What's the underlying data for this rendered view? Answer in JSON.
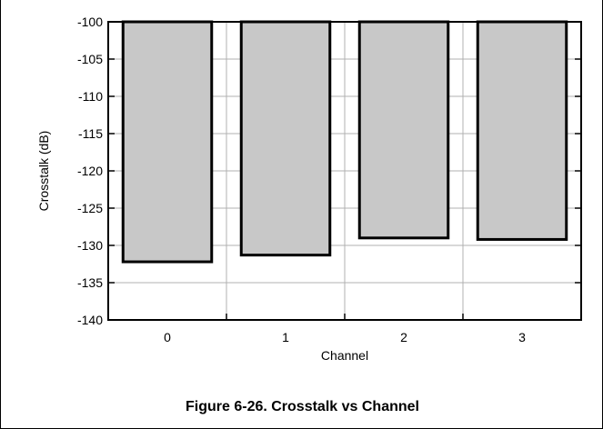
{
  "figure": {
    "caption": "Figure 6-26. Crosstalk vs Channel"
  },
  "chart_data": {
    "type": "bar",
    "categories": [
      "0",
      "1",
      "2",
      "3"
    ],
    "values": [
      -132.2,
      -131.3,
      -129.0,
      -129.2
    ],
    "baseline": -100,
    "xlabel": "Channel",
    "ylabel": "Crosstalk (dB)",
    "ylim": [
      -140,
      -100
    ],
    "yticks": [
      -100,
      -105,
      -110,
      -115,
      -120,
      -125,
      -130,
      -135,
      -140
    ],
    "grid": true,
    "legend": "none",
    "colors": {
      "bar_fill": "#c8c8c8",
      "bar_stroke": "#000000",
      "grid": "#b0b0b0"
    }
  }
}
